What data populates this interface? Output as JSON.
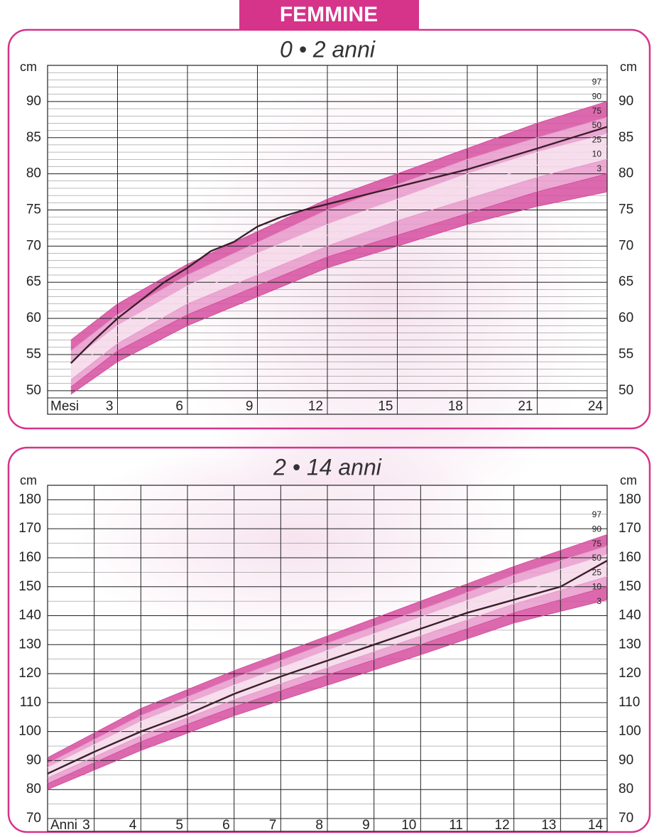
{
  "header": {
    "title": "FEMMINE"
  },
  "chart_data": [
    {
      "type": "line",
      "title": "0 • 2 anni",
      "y_unit": "cm",
      "x_label": "Mesi",
      "x": [
        1,
        3,
        6,
        9,
        12,
        15,
        18,
        21,
        24
      ],
      "xlim": [
        0,
        24
      ],
      "xticks": [
        3,
        6,
        9,
        12,
        15,
        18,
        21,
        24
      ],
      "ylim": [
        49,
        95
      ],
      "yticks": [
        50,
        55,
        60,
        65,
        70,
        75,
        80,
        85,
        90
      ],
      "minor_grid": 1,
      "series": [
        {
          "name": "97",
          "color": "#d64fa0",
          "values": [
            57,
            62,
            67.5,
            72,
            76.5,
            80,
            83.5,
            87,
            90
          ]
        },
        {
          "name": "90",
          "color": "#e89acb",
          "values": [
            55.5,
            60.5,
            66,
            70.5,
            75,
            78.5,
            82,
            85,
            87.8
          ]
        },
        {
          "name": "75",
          "color": "#f6d8ea",
          "values": [
            54,
            59,
            64.5,
            69,
            73,
            76.5,
            80,
            83,
            85.5
          ]
        },
        {
          "name": "50",
          "color": "#f6d8ea",
          "values": [
            52.7,
            57.7,
            63.2,
            67.5,
            71.5,
            75,
            78.2,
            81.2,
            83.8
          ]
        },
        {
          "name": "25",
          "color": "#e89acb",
          "values": [
            51.5,
            56.5,
            62,
            66,
            70,
            73.5,
            76.5,
            79.5,
            82
          ]
        },
        {
          "name": "10",
          "color": "#d64fa0",
          "values": [
            50.5,
            55.5,
            60.5,
            64.5,
            68.5,
            71.5,
            74.5,
            77.5,
            80
          ]
        },
        {
          "name": "3",
          "color": "#d64fa0",
          "values": [
            49.5,
            54,
            59,
            63,
            67,
            70,
            73,
            75.5,
            77.5
          ]
        }
      ],
      "measurement": {
        "color": "#3a1f2a",
        "x": [
          1,
          2,
          3,
          4,
          5,
          6,
          7,
          8,
          9,
          10,
          11,
          12,
          13,
          15,
          18,
          21,
          24
        ],
        "values": [
          53.8,
          57,
          60,
          62.5,
          65,
          67,
          69.3,
          70.6,
          72.7,
          74,
          75,
          75.8,
          76.6,
          78.2,
          80.6,
          83.5,
          86.5
        ]
      }
    },
    {
      "type": "line",
      "title": "2 • 14 anni",
      "y_unit": "cm",
      "x_label": "Anni",
      "x": [
        2,
        4,
        6,
        8,
        10,
        12,
        14
      ],
      "xlim": [
        2,
        14
      ],
      "xticks": [
        3,
        4,
        5,
        6,
        7,
        8,
        9,
        10,
        11,
        12,
        13,
        14
      ],
      "ylim": [
        70,
        185
      ],
      "yticks": [
        70,
        80,
        90,
        100,
        110,
        120,
        130,
        140,
        150,
        160,
        170,
        180
      ],
      "minor_grid": 5,
      "series": [
        {
          "name": "97",
          "color": "#d64fa0",
          "values": [
            91,
            108,
            121,
            133,
            145,
            157,
            168
          ]
        },
        {
          "name": "90",
          "color": "#e89acb",
          "values": [
            89,
            105.5,
            118.5,
            130.5,
            142,
            154,
            164
          ]
        },
        {
          "name": "75",
          "color": "#f6d8ea",
          "values": [
            87.5,
            103.5,
            116,
            128,
            139.5,
            151,
            161
          ]
        },
        {
          "name": "50",
          "color": "#f6d8ea",
          "values": [
            85.5,
            101,
            113.5,
            125,
            136.5,
            147.5,
            157
          ]
        },
        {
          "name": "25",
          "color": "#e89acb",
          "values": [
            84,
            98.5,
            111,
            122,
            133,
            144,
            153.5
          ]
        },
        {
          "name": "10",
          "color": "#d64fa0",
          "values": [
            82,
            96.5,
            108.5,
            119.5,
            130,
            141,
            150
          ]
        },
        {
          "name": "3",
          "color": "#d64fa0",
          "values": [
            80,
            93.5,
            105.5,
            116,
            126.5,
            137.5,
            145.5
          ]
        }
      ],
      "measurement": {
        "color": "#3a1f2a",
        "x": [
          2,
          3,
          4,
          5,
          6,
          7,
          8,
          9,
          10,
          11,
          12,
          13,
          14
        ],
        "values": [
          85.5,
          93,
          100,
          106,
          113,
          119,
          124.5,
          130,
          135.5,
          141,
          145.5,
          150,
          159
        ]
      }
    }
  ]
}
